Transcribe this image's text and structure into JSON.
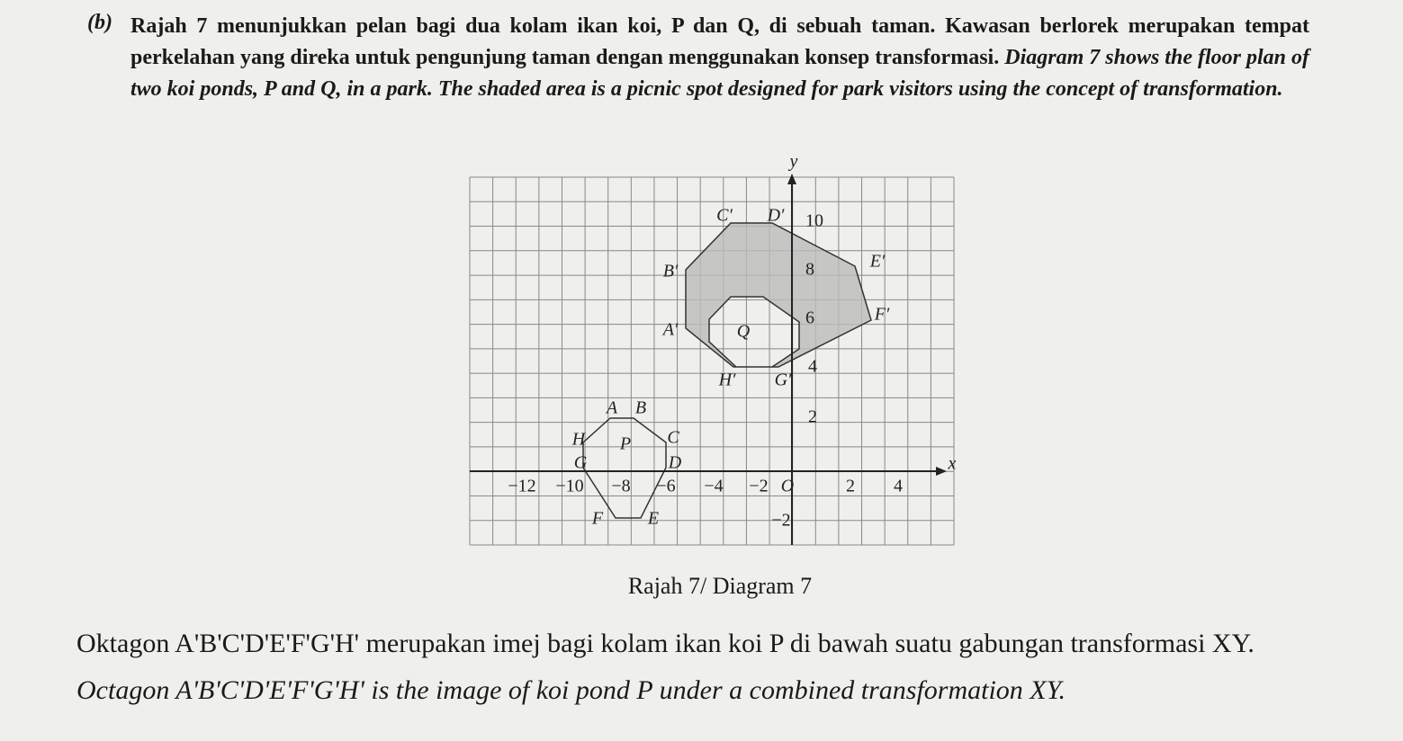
{
  "question": {
    "label": "(b)",
    "malay": "Rajah 7 menunjukkan pelan bagi dua kolam ikan koi, P dan Q, di sebuah taman. Kawasan berlorek merupakan tempat perkelahan yang direka untuk pengunjung taman dengan menggunakan konsep transformasi.",
    "english": "Diagram 7 shows the floor plan of two koi ponds, P and Q, in a park. The shaded area is a picnic spot designed for park visitors using the concept of transformation."
  },
  "diagram": {
    "axis_x": "x",
    "axis_y": "y",
    "x_ticks": [
      "−12",
      "−10",
      "−8",
      "−6",
      "−4",
      "−2",
      "O",
      "2",
      "4"
    ],
    "y_ticks": [
      "10",
      "8",
      "6",
      "4",
      "2",
      "−2"
    ],
    "pond_labels": [
      "P",
      "Q"
    ],
    "vertices_p": [
      "A",
      "B",
      "C",
      "D",
      "E",
      "F",
      "G",
      "H"
    ],
    "vertices_image": [
      "A′",
      "B′",
      "C′",
      "D′",
      "E′",
      "F′",
      "G′",
      "H′"
    ],
    "caption": "Rajah 7/ Diagram 7"
  },
  "statement": {
    "malay": "Oktagon A'B'C'D'E'F'G'H' merupakan imej bagi kolam ikan koi P di bawah suatu gabungan transformasi XY.",
    "english": "Octagon A'B'C'D'E'F'G'H' is the image of koi pond P under a combined transformation XY."
  }
}
